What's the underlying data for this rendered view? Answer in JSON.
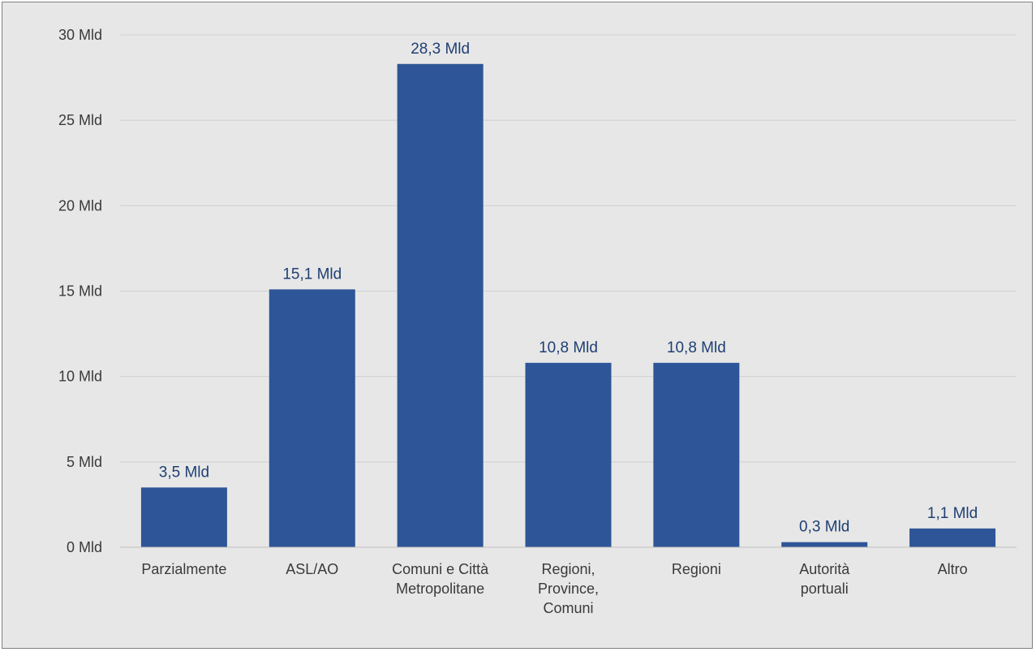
{
  "chart_data": {
    "type": "bar",
    "title": "",
    "xlabel": "",
    "ylabel": "",
    "categories": [
      [
        "Parzialmente"
      ],
      [
        "ASL/AO"
      ],
      [
        "Comuni e Città",
        "Metropolitane"
      ],
      [
        "Regioni,",
        "Province,",
        "Comuni"
      ],
      [
        "Regioni"
      ],
      [
        "Autorità",
        "portuali"
      ],
      [
        "Altro"
      ]
    ],
    "values": [
      3.5,
      15.1,
      28.3,
      10.8,
      10.8,
      0.3,
      1.1
    ],
    "data_labels": [
      "3,5 Mld",
      "15,1 Mld",
      "28,3 Mld",
      "10,8 Mld",
      "10,8 Mld",
      "0,3 Mld",
      "1,1 Mld"
    ],
    "ylim": [
      0,
      30
    ],
    "yticks": [
      0,
      5,
      10,
      15,
      20,
      25,
      30
    ],
    "ytick_labels": [
      "0 Mld",
      "5 Mld",
      "10 Mld",
      "15 Mld",
      "20 Mld",
      "25 Mld",
      "30 Mld"
    ],
    "grid": true,
    "legend": "none",
    "colors": {
      "bar": "#2e5597",
      "data_label": "#1f3f73",
      "grid": "#d0d0d0",
      "background": "#e7e7e7"
    }
  }
}
